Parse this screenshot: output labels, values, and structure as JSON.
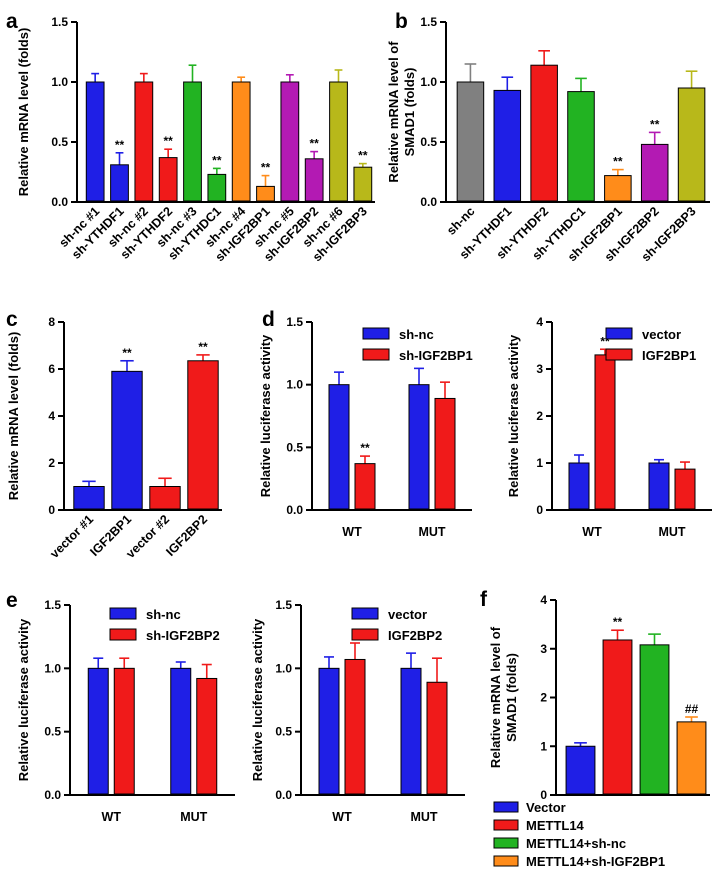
{
  "colors": {
    "blue": "#1f1fe6",
    "red": "#f01a1a",
    "green": "#22b322",
    "orange": "#ff8c1a",
    "magenta": "#b31ab3",
    "olive": "#b8b81a",
    "gray": "#808080"
  },
  "chart_data": [
    {
      "id": "a",
      "panel_label": "a",
      "type": "bar",
      "ylabel": "Relative mRNA level (folds)",
      "ylim": [
        0,
        1.5
      ],
      "yticks": [
        "0.0",
        "0.5",
        "1.0",
        "1.5"
      ],
      "categories": [
        "sh-nc #1",
        "sh-YTHDF1",
        "sh-nc #2",
        "sh-YTHDF2",
        "sh-nc #3",
        "sh-YTHDC1",
        "sh-nc #4",
        "sh-IGF2BP1",
        "sh-nc #5",
        "sh-IGF2BP2",
        "sh-nc #6",
        "sh-IGF2BP3"
      ],
      "values": [
        1.0,
        0.31,
        1.0,
        0.37,
        1.0,
        0.23,
        1.0,
        0.13,
        1.0,
        0.36,
        1.0,
        0.29
      ],
      "errors": [
        0.07,
        0.1,
        0.07,
        0.07,
        0.14,
        0.05,
        0.04,
        0.09,
        0.06,
        0.06,
        0.1,
        0.03
      ],
      "colors": [
        "blue",
        "blue",
        "red",
        "red",
        "green",
        "green",
        "orange",
        "orange",
        "magenta",
        "magenta",
        "olive",
        "olive"
      ],
      "annotations": [
        "",
        "**",
        "",
        "**",
        "",
        "**",
        "",
        "**",
        "",
        "**",
        "",
        "**"
      ]
    },
    {
      "id": "b",
      "panel_label": "b",
      "type": "bar",
      "ylabel": "Relative mRNA level of SMAD1 (folds)",
      "ylabel_lines": [
        "Relative mRNA level of",
        "SMAD1 (folds)"
      ],
      "ylim": [
        0,
        1.5
      ],
      "yticks": [
        "0.0",
        "0.5",
        "1.0",
        "1.5"
      ],
      "categories": [
        "sh-nc",
        "sh-YTHDF1",
        "sh-YTHDF2",
        "sh-YTHDC1",
        "sh-IGF2BP1",
        "sh-IGF2BP2",
        "sh-IGF2BP3"
      ],
      "values": [
        1.0,
        0.93,
        1.14,
        0.92,
        0.22,
        0.48,
        0.95
      ],
      "errors": [
        0.15,
        0.11,
        0.12,
        0.11,
        0.05,
        0.1,
        0.14
      ],
      "colors": [
        "gray",
        "blue",
        "red",
        "green",
        "orange",
        "magenta",
        "olive"
      ],
      "annotations": [
        "",
        "",
        "",
        "",
        "**",
        "**",
        ""
      ]
    },
    {
      "id": "c",
      "panel_label": "c",
      "type": "bar",
      "ylabel": "Relative mRNA level (folds)",
      "ylim": [
        0,
        8
      ],
      "yticks": [
        "0",
        "2",
        "4",
        "6",
        "8"
      ],
      "categories": [
        "vector #1",
        "IGF2BP1",
        "vector #2",
        "IGF2BP2"
      ],
      "values": [
        1.0,
        5.9,
        1.0,
        6.35
      ],
      "errors": [
        0.22,
        0.45,
        0.35,
        0.25
      ],
      "colors": [
        "blue",
        "blue",
        "red",
        "red"
      ],
      "annotations": [
        "",
        "**",
        "",
        "**"
      ]
    },
    {
      "id": "d1",
      "panel_label": "d",
      "type": "bar",
      "ylabel": "Relative luciferase activity",
      "ylim": [
        0,
        1.5
      ],
      "yticks": [
        "0.0",
        "0.5",
        "1.0",
        "1.5"
      ],
      "categories": [
        "WT",
        "MUT"
      ],
      "series": [
        {
          "name": "sh-nc",
          "color": "blue",
          "values": [
            1.0,
            1.0
          ],
          "errors": [
            0.1,
            0.13
          ]
        },
        {
          "name": "sh-IGF2BP1",
          "color": "red",
          "values": [
            0.37,
            0.89
          ],
          "errors": [
            0.06,
            0.13
          ]
        }
      ],
      "annotations": [
        {
          "series": 1,
          "category": 0,
          "text": "**"
        }
      ]
    },
    {
      "id": "d2",
      "panel_label": "",
      "type": "bar",
      "ylabel": "Relative luciferase activity",
      "ylim": [
        0,
        4
      ],
      "yticks": [
        "0",
        "1",
        "2",
        "3",
        "4"
      ],
      "categories": [
        "WT",
        "MUT"
      ],
      "series": [
        {
          "name": "vector",
          "color": "blue",
          "values": [
            1.0,
            1.0
          ],
          "errors": [
            0.17,
            0.07
          ]
        },
        {
          "name": "IGF2BP1",
          "color": "red",
          "values": [
            3.3,
            0.87
          ],
          "errors": [
            0.12,
            0.15
          ]
        }
      ],
      "annotations": [
        {
          "series": 1,
          "category": 0,
          "text": "**"
        }
      ]
    },
    {
      "id": "e1",
      "panel_label": "e",
      "type": "bar",
      "ylabel": "Relative luciferase activity",
      "ylim": [
        0,
        1.5
      ],
      "yticks": [
        "0.0",
        "0.5",
        "1.0",
        "1.5"
      ],
      "categories": [
        "WT",
        "MUT"
      ],
      "series": [
        {
          "name": "sh-nc",
          "color": "blue",
          "values": [
            1.0,
            1.0
          ],
          "errors": [
            0.08,
            0.05
          ]
        },
        {
          "name": "sh-IGF2BP2",
          "color": "red",
          "values": [
            1.0,
            0.92
          ],
          "errors": [
            0.08,
            0.11
          ]
        }
      ],
      "annotations": []
    },
    {
      "id": "e2",
      "panel_label": "",
      "type": "bar",
      "ylabel": "Relative luciferase activity",
      "ylim": [
        0,
        1.5
      ],
      "yticks": [
        "0.0",
        "0.5",
        "1.0",
        "1.5"
      ],
      "categories": [
        "WT",
        "MUT"
      ],
      "series": [
        {
          "name": "vector",
          "color": "blue",
          "values": [
            1.0,
            1.0
          ],
          "errors": [
            0.09,
            0.12
          ]
        },
        {
          "name": "IGF2BP2",
          "color": "red",
          "values": [
            1.07,
            0.89
          ],
          "errors": [
            0.13,
            0.19
          ]
        }
      ],
      "annotations": []
    },
    {
      "id": "f",
      "panel_label": "f",
      "type": "bar",
      "ylabel": "Relative mRNA level of SMAD1 (folds)",
      "ylabel_lines": [
        "Relative mRNA level of",
        "SMAD1 (folds)"
      ],
      "ylim": [
        0,
        4
      ],
      "yticks": [
        "0",
        "1",
        "2",
        "3",
        "4"
      ],
      "categories": [
        "Vector",
        "METTL14",
        "METTL14+sh-nc",
        "METTL14+sh-IGF2BP1"
      ],
      "values": [
        1.0,
        3.18,
        3.08,
        1.5
      ],
      "errors": [
        0.07,
        0.2,
        0.22,
        0.1
      ],
      "colors": [
        "blue",
        "red",
        "green",
        "orange"
      ],
      "annotations": [
        "",
        "**",
        "",
        "##"
      ],
      "legend": [
        "Vector",
        "METTL14",
        "METTL14+sh-nc",
        "METTL14+sh-IGF2BP1"
      ]
    }
  ]
}
